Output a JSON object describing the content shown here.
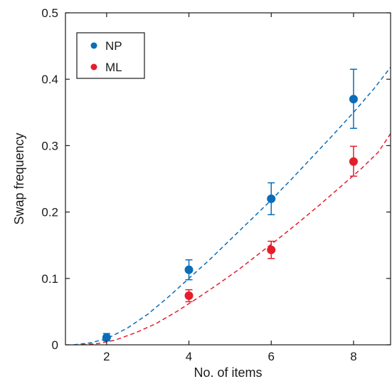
{
  "chart_data": {
    "type": "scatter",
    "xlabel": "No. of items",
    "ylabel": "Swap frequency",
    "xlim": [
      1,
      8.9
    ],
    "ylim": [
      0,
      0.5
    ],
    "xticks": [
      2,
      4,
      6,
      8
    ],
    "yticks": [
      0,
      0.1,
      0.2,
      0.3,
      0.4,
      0.5
    ],
    "xtick_labels": [
      "2",
      "4",
      "6",
      "8"
    ],
    "ytick_labels": [
      "0",
      "0.1",
      "0.2",
      "0.3",
      "0.4",
      "0.5"
    ],
    "grid": false,
    "legend_position": "top-left",
    "series": [
      {
        "name": "NP",
        "color": "#0a6db7",
        "marker": "circle",
        "x": [
          2,
          4,
          6,
          8
        ],
        "y": [
          0.011,
          0.113,
          0.22,
          0.37
        ],
        "err_low": [
          0.005,
          0.015,
          0.024,
          0.044
        ],
        "err_high": [
          0.006,
          0.015,
          0.024,
          0.045
        ],
        "fit": {
          "style": "dashed",
          "x": [
            1.2,
            1.6,
            2.0,
            2.5,
            3.0,
            3.5,
            4.0,
            4.5,
            5.0,
            5.5,
            6.0,
            6.5,
            7.0,
            7.5,
            8.0,
            8.5,
            8.9
          ],
          "y": [
            0.0,
            0.003,
            0.009,
            0.025,
            0.046,
            0.072,
            0.1,
            0.128,
            0.158,
            0.188,
            0.218,
            0.25,
            0.283,
            0.316,
            0.35,
            0.386,
            0.418
          ]
        }
      },
      {
        "name": "ML",
        "color": "#e41e2b",
        "marker": "circle",
        "x": [
          4,
          6,
          8
        ],
        "y": [
          0.074,
          0.143,
          0.276
        ],
        "err_low": [
          0.009,
          0.013,
          0.022
        ],
        "err_high": [
          0.009,
          0.013,
          0.023
        ],
        "fit": {
          "style": "dashed",
          "x": [
            1.4,
            1.8,
            2.2,
            2.7,
            3.2,
            3.7,
            4.2,
            4.7,
            5.2,
            5.7,
            6.2,
            6.7,
            7.2,
            7.7,
            8.2,
            8.6,
            8.9
          ],
          "y": [
            0.0,
            0.002,
            0.007,
            0.018,
            0.032,
            0.05,
            0.07,
            0.091,
            0.113,
            0.137,
            0.161,
            0.186,
            0.212,
            0.239,
            0.266,
            0.29,
            0.318
          ]
        }
      }
    ]
  }
}
